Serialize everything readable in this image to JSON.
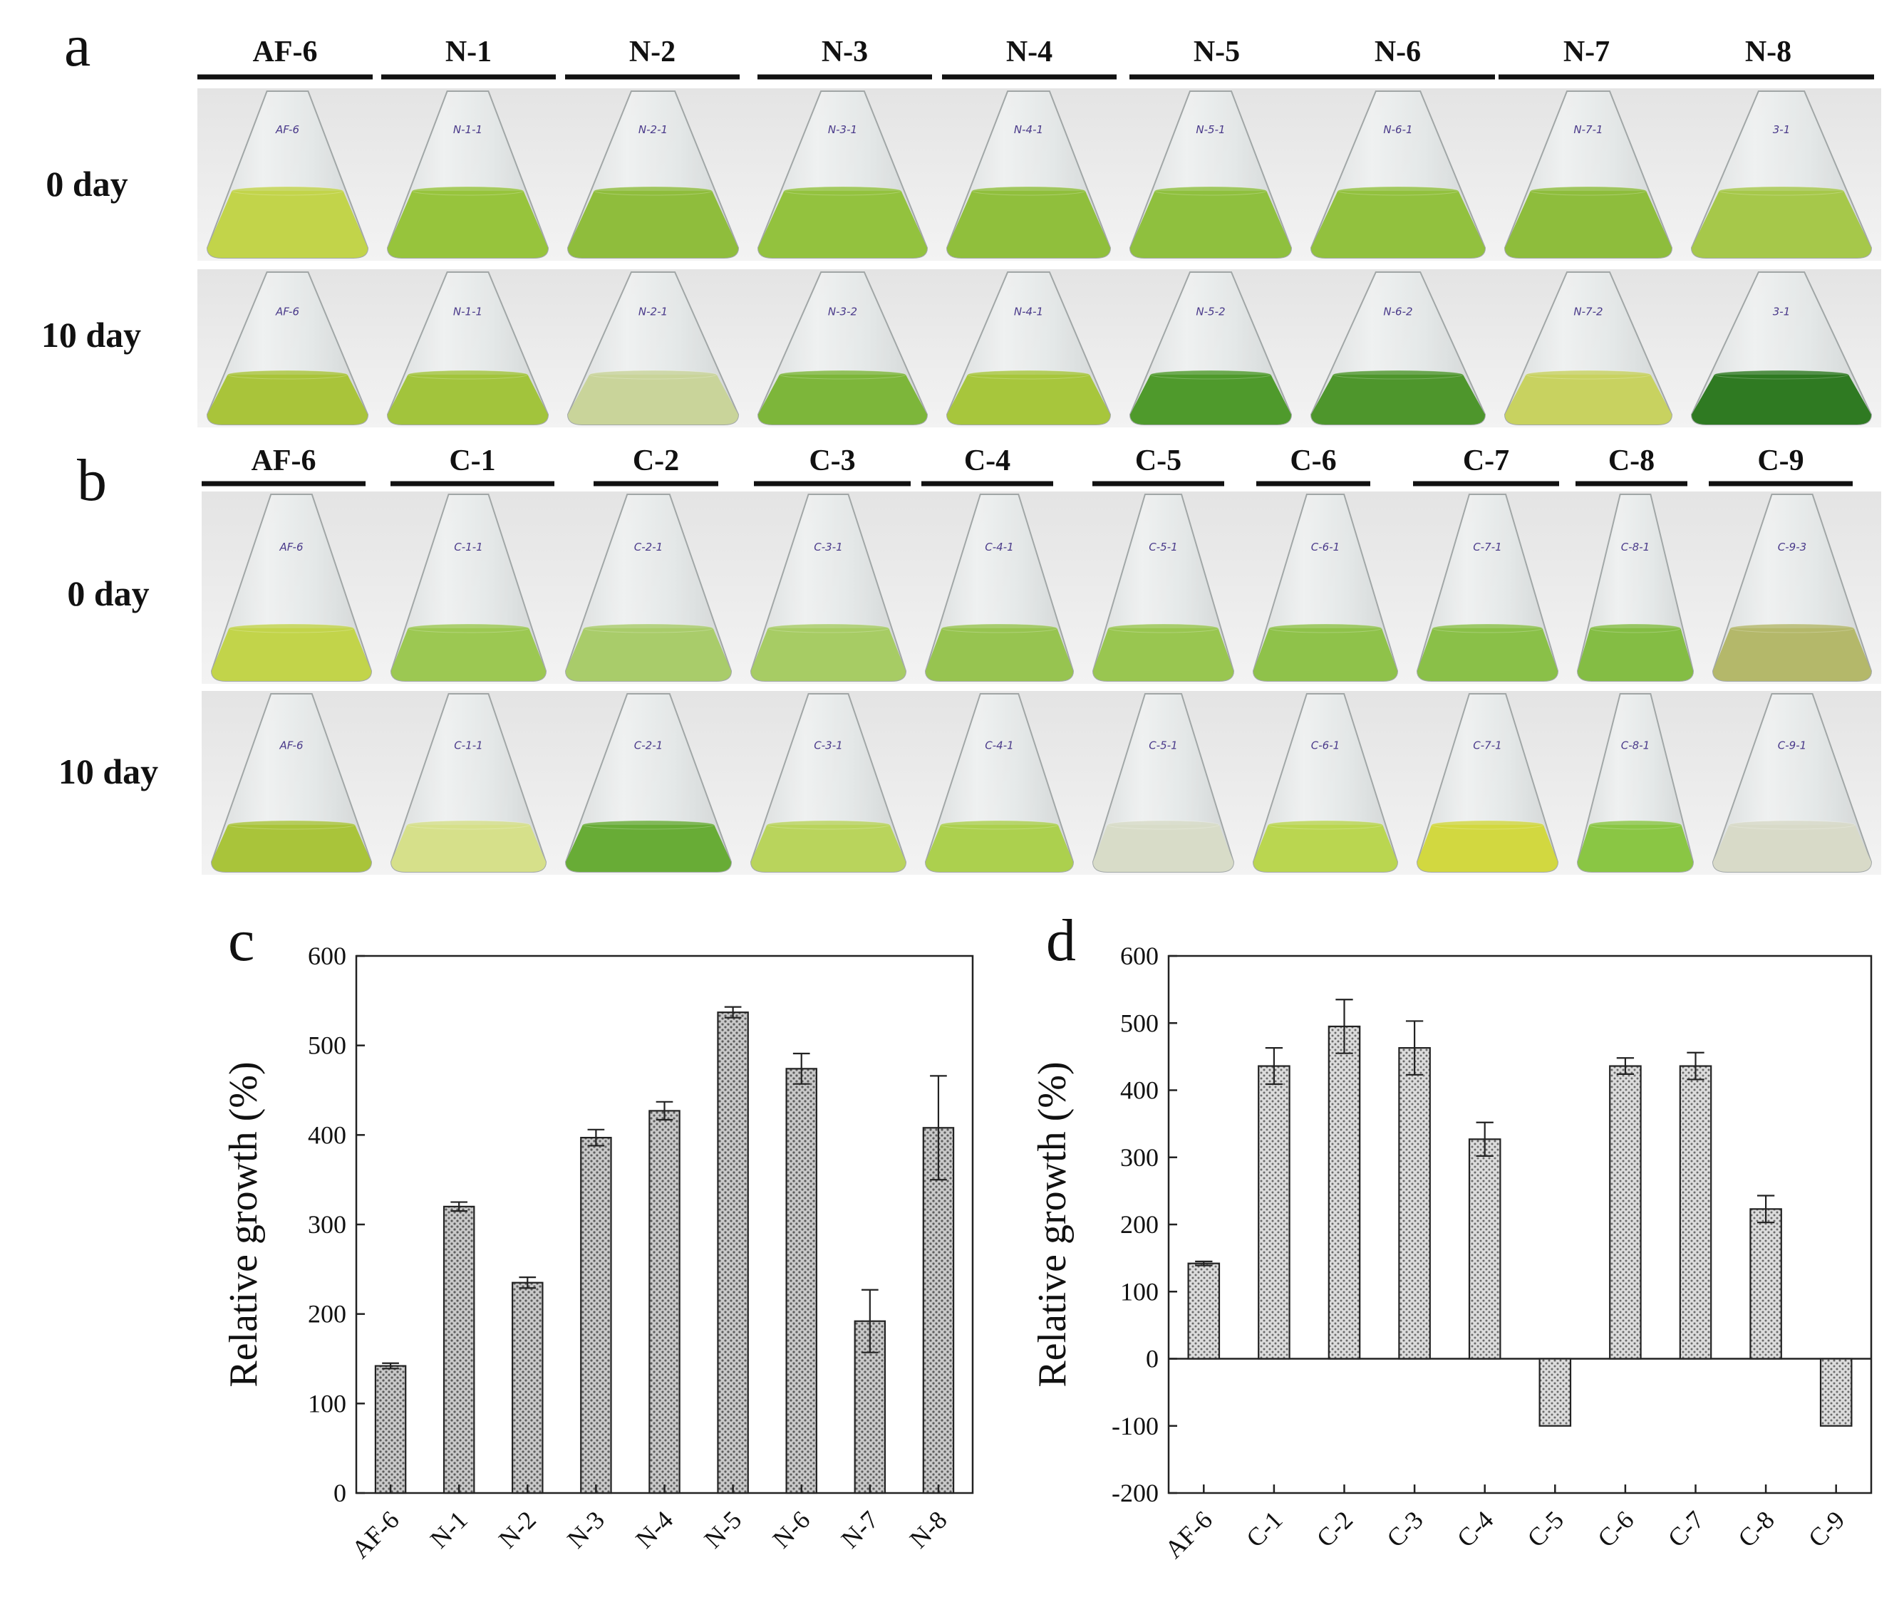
{
  "panel_a": {
    "letter": "a",
    "headers": [
      "AF-6",
      "N-1",
      "N-2",
      "N-3",
      "N-4",
      "N-5",
      "N-6",
      "N-7",
      "N-8"
    ],
    "rows": [
      "0 day",
      "10 day"
    ],
    "day0_colors": [
      "#c2d44a",
      "#97c43c",
      "#8fbd3c",
      "#93c23e",
      "#90bf3c",
      "#8fc03e",
      "#92c13e",
      "#8ebd3c",
      "#a6c84a"
    ],
    "day10_colors": [
      "#a9c43a",
      "#a2c43c",
      "#c9d49a",
      "#7db63a",
      "#a7c63c",
      "#4f9a2c",
      "#4e962c",
      "#c8d260",
      "#2f7a22"
    ]
  },
  "panel_b": {
    "letter": "b",
    "headers": [
      "AF-6",
      "C-1",
      "C-2",
      "C-3",
      "C-4",
      "C-5",
      "C-6",
      "C-7",
      "C-8",
      "C-9"
    ],
    "rows": [
      "0 day",
      "10 day"
    ],
    "day0_colors": [
      "#c2d44a",
      "#9cc852",
      "#a9cc6a",
      "#a7cc64",
      "#97c450",
      "#99c650",
      "#8fc24a",
      "#8ac048",
      "#84bd44",
      "#b4b86a"
    ],
    "day10_colors": [
      "#a9c43a",
      "#d6e08a",
      "#68ac36",
      "#b9d45c",
      "#acd04e",
      "#d8dcc8",
      "#bad650",
      "#d2d840",
      "#8ac644",
      "#d8dac8"
    ]
  },
  "flask_labels": {
    "a0": [
      "AF-6",
      "N-1-1",
      "N-2-1",
      "N-3-1",
      "N-4-1",
      "N-5-1",
      "N-6-1",
      "N-7-1",
      "3-1"
    ],
    "a10": [
      "AF-6",
      "N-1-1",
      "N-2-1",
      "N-3-2",
      "N-4-1",
      "N-5-2",
      "N-6-2",
      "N-7-2",
      "3-1"
    ],
    "b0": [
      "AF-6",
      "C-1-1",
      "C-2-1",
      "C-3-1",
      "C-4-1",
      "C-5-1",
      "C-6-1",
      "C-7-1",
      "C-8-1",
      "C-9-3"
    ],
    "b10": [
      "AF-6",
      "C-1-1",
      "C-2-1",
      "C-3-1",
      "C-4-1",
      "C-5-1",
      "C-6-1",
      "C-7-1",
      "C-8-1",
      "C-9-1"
    ]
  },
  "chart_data": [
    {
      "panel": "c",
      "type": "bar",
      "categories": [
        "AF-6",
        "N-1",
        "N-2",
        "N-3",
        "N-4",
        "N-5",
        "N-6",
        "N-7",
        "N-8"
      ],
      "values": [
        142,
        320,
        235,
        397,
        427,
        537,
        474,
        192,
        408
      ],
      "errors": [
        3,
        5,
        6,
        9,
        10,
        6,
        17,
        35,
        58
      ],
      "ylabel": "Relative growth (%)",
      "ylim": [
        0,
        600
      ],
      "yticks": [
        0,
        100,
        200,
        300,
        400,
        500,
        600
      ]
    },
    {
      "panel": "d",
      "type": "bar",
      "categories": [
        "AF-6",
        "C-1",
        "C-2",
        "C-3",
        "C-4",
        "C-5",
        "C-6",
        "C-7",
        "C-8",
        "C-9"
      ],
      "values": [
        142,
        436,
        495,
        463,
        327,
        -100,
        436,
        436,
        223,
        -100
      ],
      "errors": [
        3,
        27,
        40,
        40,
        25,
        0,
        12,
        20,
        20,
        0
      ],
      "ylabel": "Relative growth (%)",
      "ylim": [
        -200,
        600
      ],
      "yticks": [
        -200,
        -100,
        0,
        100,
        200,
        300,
        400,
        500,
        600
      ]
    }
  ]
}
